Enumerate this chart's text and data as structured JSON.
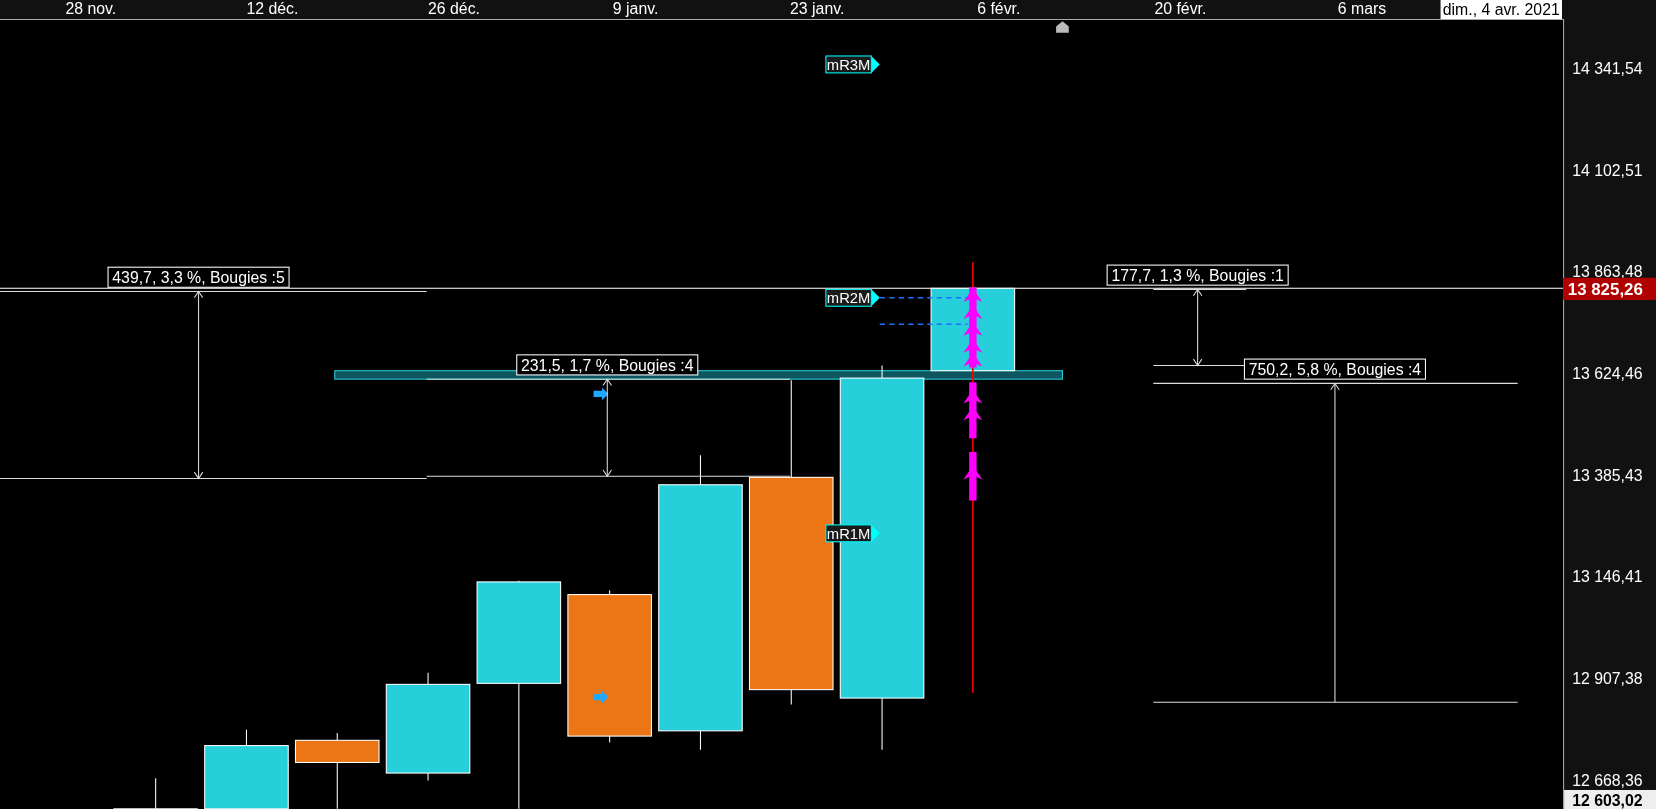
{
  "chart_data": {
    "type": "candlestick",
    "x": [
      "2020-12-03",
      "2020-12-10",
      "2020-12-17",
      "2020-12-24",
      "2020-12-31",
      "2021-01-07",
      "2021-01-14",
      "2021-01-21",
      "2021-01-28",
      "2021-02-04"
    ],
    "ohlc": [
      [
        12602,
        12673.7,
        12602,
        12602
      ],
      [
        12602,
        12787.8,
        12602,
        12750.6
      ],
      [
        12763.0,
        12780.4,
        12602,
        12710.9
      ],
      [
        12686.0,
        12921.8,
        12668.6,
        12894.5
      ],
      [
        12896.9,
        13137.8,
        12602,
        13135.3
      ],
      [
        13105.5,
        13115.4,
        12757.9,
        12772.9
      ],
      [
        12785.3,
        13433.1,
        12740.6,
        13363.6
      ],
      [
        13381.0,
        13609.3,
        12847.4,
        12882.1
      ],
      [
        12862.3,
        13644.1,
        12740.6,
        13614.3
      ],
      [
        13631.7,
        13825.26,
        13631.7,
        13825.26
      ]
    ],
    "colors": [
      "#26cfda",
      "#26cfda",
      "#ec7616",
      "#26cfda",
      "#26cfda",
      "#ec7616",
      "#26cfda",
      "#ec7616",
      "#26cfda",
      "#26cfda"
    ],
    "xlim": [
      "2020-11-21",
      "2021-03-21T12:00"
    ],
    "xticks": [
      {
        "value": "2020-11-28",
        "label": "28 nov."
      },
      {
        "value": "2020-12-12",
        "label": "12 déc."
      },
      {
        "value": "2020-12-26",
        "label": "26 déc."
      },
      {
        "value": "2021-01-09",
        "label": "9 janv."
      },
      {
        "value": "2021-01-23",
        "label": "23 janv."
      },
      {
        "value": "2021-02-06",
        "label": "6 févr."
      },
      {
        "value": "2021-02-20",
        "label": "20 févr."
      },
      {
        "value": "2021-03-06",
        "label": "6 mars"
      }
    ],
    "ylim": [
      12601.6,
      14453.2
    ],
    "yticks": [
      {
        "value": 12668.36,
        "label": "12 668,36"
      },
      {
        "value": 12907.38,
        "label": "12 907,38"
      },
      {
        "value": 13146.41,
        "label": "13 146,41"
      },
      {
        "value": 13385.43,
        "label": "13 385,43"
      },
      {
        "value": 13624.46,
        "label": "13 624,46"
      },
      {
        "value": 13863.48,
        "label": "13 863,48"
      },
      {
        "value": 14102.51,
        "label": "14 102,51"
      },
      {
        "value": 14341.54,
        "label": "14 341,54"
      }
    ],
    "ref_lines": [
      {
        "axis": "y",
        "value": 13825.26,
        "label": "13 825,26",
        "color": "#ffffff"
      }
    ],
    "annotations": [
      "439,7, 3,3 %, Bougies :5",
      "231,5, 1,7 %, Bougies :4",
      "177,7, 1,3 %, Bougies :1",
      "750,2, 5,8 %, Bougies :4",
      "mR3M",
      {
        "text": "mR2M",
        "x": "2021-02-04",
        "y": 13803
      },
      "mR1M",
      "dim., 4 avr. 2021",
      "12 603,02"
    ]
  }
}
